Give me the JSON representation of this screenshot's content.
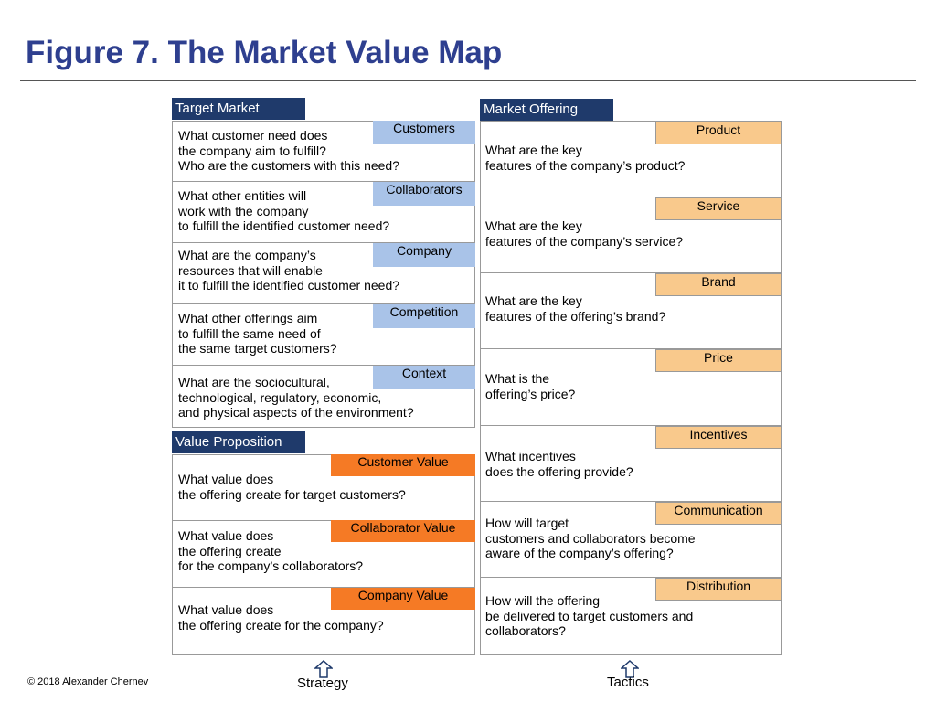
{
  "title": "Figure 7. The Market Value Map",
  "target_market": {
    "header": "Target Market",
    "sections": [
      {
        "label": "Customers",
        "question": "What customer need does\nthe company aim to fulfill?\nWho are the customers with this need?"
      },
      {
        "label": "Collaborators",
        "question": "What other entities will\nwork with the company\nto fulfill the identified customer need?"
      },
      {
        "label": "Company",
        "question": "What are the company’s\nresources  that will enable\nit to fulfill the identified customer need?"
      },
      {
        "label": "Competition",
        "question": "What other offerings aim\nto fulfill the same need of\nthe same target customers?"
      },
      {
        "label": "Context",
        "question": "What are the sociocultural,\ntechnological, regulatory, economic,\nand physical aspects of the environment?"
      }
    ]
  },
  "value_proposition": {
    "header": "Value Proposition",
    "sections": [
      {
        "label": "Customer Value",
        "question": "What value does\nthe offering create for target customers?"
      },
      {
        "label": "Collaborator Value",
        "question": "What value does\nthe offering create\nfor the company’s collaborators?"
      },
      {
        "label": "Company Value",
        "question": "What value does\nthe offering create for the company?"
      }
    ]
  },
  "market_offering": {
    "header": "Market Offering",
    "sections": [
      {
        "label": "Product",
        "question": "What are the key\nfeatures of the company’s product?"
      },
      {
        "label": "Service",
        "question": "What are the key\nfeatures of the company’s service?"
      },
      {
        "label": "Brand",
        "question": "What are the key\nfeatures of the offering’s brand?"
      },
      {
        "label": "Price",
        "question": "What is the\noffering’s price?"
      },
      {
        "label": "Incentives",
        "question": "What incentives\ndoes the offering provide?"
      },
      {
        "label": "Communication",
        "question": "How will target\ncustomers and collaborators become\naware of the company’s offering?"
      },
      {
        "label": "Distribution",
        "question": "How will the offering\nbe delivered to target customers and\ncollaborators?"
      }
    ]
  },
  "footer": {
    "strategy": "Strategy",
    "tactics": "Tactics",
    "copyright": "© 2018 Alexander Chernev"
  },
  "colors": {
    "title": "#2e3f8f",
    "header_bg": "#1f3a6b",
    "target_label": "#a9c3e8",
    "offering_label": "#f9c98c",
    "value_label": "#f57a25",
    "arrow_fill": "#ffffff",
    "arrow_stroke": "#1f3a6b"
  },
  "icons": [
    "up-arrow-icon"
  ]
}
